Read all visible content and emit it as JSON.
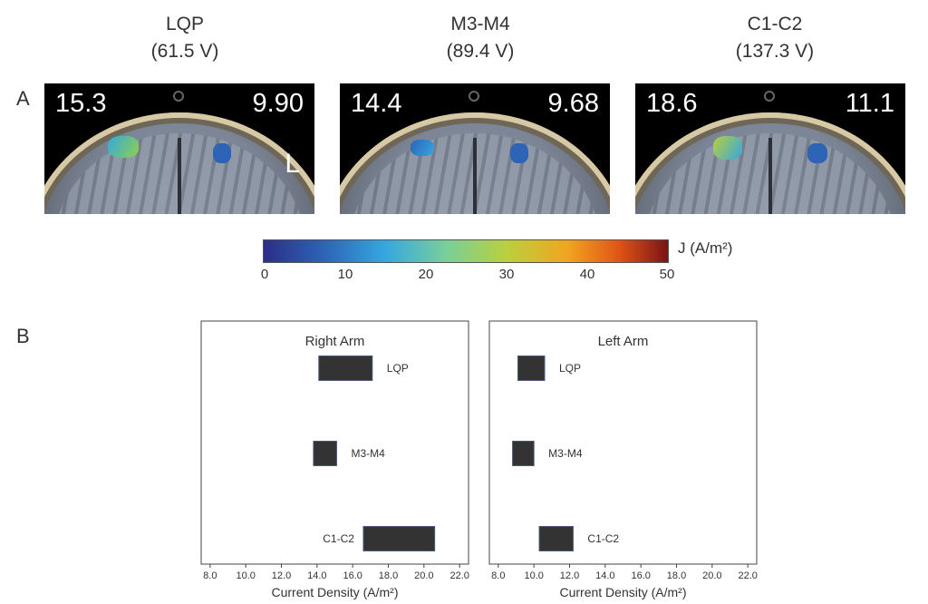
{
  "panel_a": {
    "label": "A",
    "columns": [
      {
        "title": "LQP",
        "voltage": "(61.5 V)",
        "left_value": "15.3",
        "right_value": "9.90",
        "side_marker": "L"
      },
      {
        "title": "M3-M4",
        "voltage": "(89.4 V)",
        "left_value": "14.4",
        "right_value": "9.68",
        "side_marker": ""
      },
      {
        "title": "C1-C2",
        "voltage": "(137.3 V)",
        "left_value": "18.6",
        "right_value": "11.1",
        "side_marker": ""
      }
    ],
    "colorbar": {
      "label": "J (A/m²)",
      "ticks": [
        "0",
        "10",
        "20",
        "30",
        "40",
        "50"
      ],
      "range": [
        0,
        50
      ]
    }
  },
  "panel_b": {
    "label": "B",
    "chart_data": [
      {
        "type": "bar",
        "title": "Right Arm",
        "xlabel": "Current Density (A/m²)",
        "xlim": [
          7.5,
          22.5
        ],
        "xticks": [
          "8.0",
          "10.0",
          "12.0",
          "14.0",
          "16.0",
          "18.0",
          "20.0",
          "22.0"
        ],
        "categories": [
          "LQP",
          "M3-M4",
          "C1-C2"
        ],
        "ranges": [
          [
            14.1,
            17.1
          ],
          [
            13.8,
            15.1
          ],
          [
            16.6,
            20.6
          ]
        ],
        "bar_color": "#333333"
      },
      {
        "type": "bar",
        "title": "Left Arm",
        "xlabel": "Current Density (A/m²)",
        "xlim": [
          7.5,
          22.5
        ],
        "xticks": [
          "8.0",
          "10.0",
          "12.0",
          "14.0",
          "16.0",
          "18.0",
          "20.0",
          "22.0"
        ],
        "categories": [
          "LQP",
          "M3-M4",
          "C1-C2"
        ],
        "ranges": [
          [
            9.1,
            10.6
          ],
          [
            8.8,
            10.0
          ],
          [
            10.3,
            12.2
          ]
        ],
        "bar_color": "#333333"
      }
    ]
  }
}
